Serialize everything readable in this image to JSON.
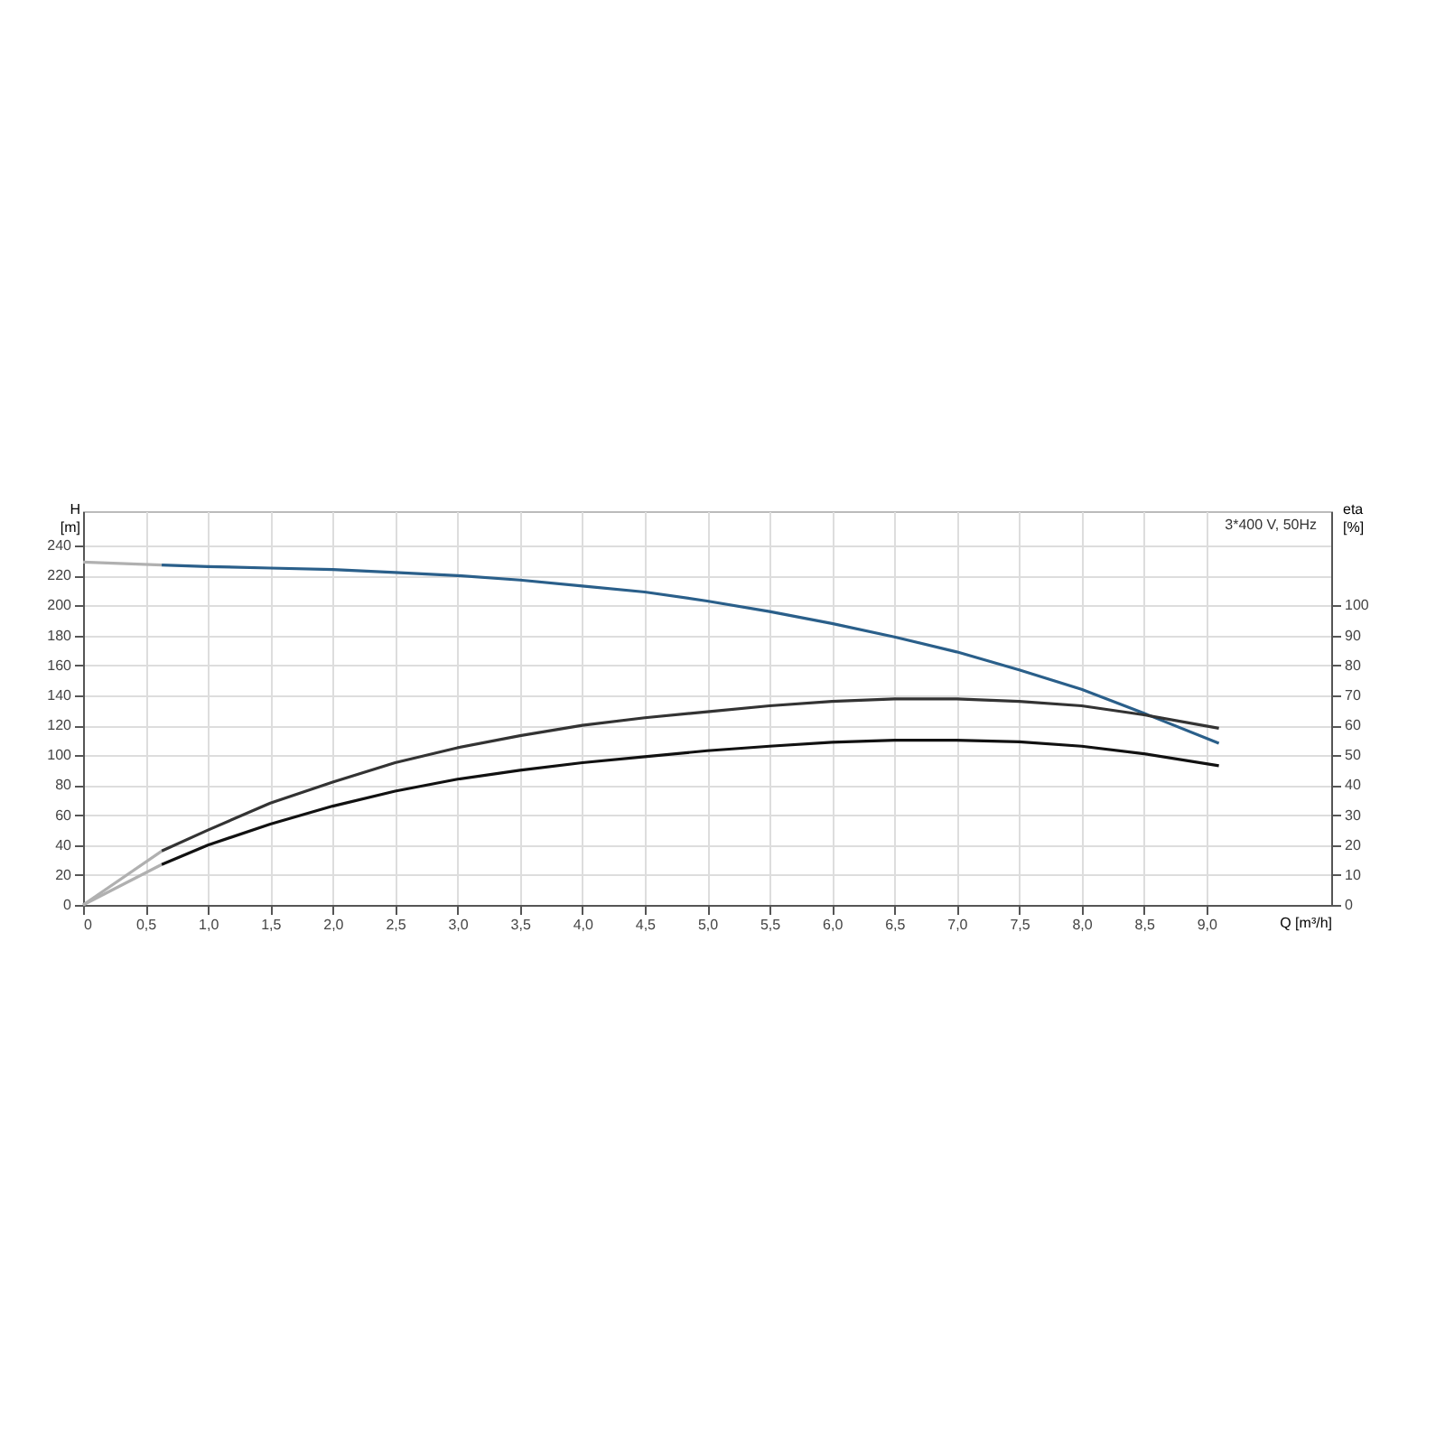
{
  "chart_data": {
    "type": "line",
    "xlabel": "Q [m³/h]",
    "ylabel": "H [m]",
    "y2label": "eta [%]",
    "annotations": [
      "3*400 V, 50Hz"
    ],
    "xlim": [
      0,
      10
    ],
    "ylim": [
      0,
      263
    ],
    "y2lim": [
      0,
      131.5
    ],
    "xticks": [
      {
        "value": 0,
        "label": "0"
      },
      {
        "value": 0.5,
        "label": "0,5"
      },
      {
        "value": 1,
        "label": "1,0"
      },
      {
        "value": 1.5,
        "label": "1,5"
      },
      {
        "value": 2,
        "label": "2,0"
      },
      {
        "value": 2.5,
        "label": "2,5"
      },
      {
        "value": 3,
        "label": "3,0"
      },
      {
        "value": 3.5,
        "label": "3,5"
      },
      {
        "value": 4,
        "label": "4,0"
      },
      {
        "value": 4.5,
        "label": "4,5"
      },
      {
        "value": 5,
        "label": "5,0"
      },
      {
        "value": 5.5,
        "label": "5,5"
      },
      {
        "value": 6,
        "label": "6,0"
      },
      {
        "value": 6.5,
        "label": "6,5"
      },
      {
        "value": 7,
        "label": "7,0"
      },
      {
        "value": 7.5,
        "label": "7,5"
      },
      {
        "value": 8,
        "label": "8,0"
      },
      {
        "value": 8.5,
        "label": "8,5"
      },
      {
        "value": 9,
        "label": "9,0"
      }
    ],
    "yticks": [
      0,
      20,
      40,
      60,
      80,
      100,
      120,
      140,
      160,
      180,
      200,
      220,
      240
    ],
    "y2ticks": [
      0,
      10,
      20,
      30,
      40,
      50,
      60,
      70,
      80,
      90,
      100
    ],
    "grid": true,
    "marker": "none",
    "line_style": "solid",
    "series": [
      {
        "color": "#b0b0b0",
        "x": [
          0,
          0.63
        ],
        "values": [
          229,
          227
        ]
      },
      {
        "color": "#2a5f8a",
        "x": [
          0.63,
          1,
          1.5,
          2,
          2.5,
          3,
          3.5,
          4,
          4.5,
          5,
          5.5,
          6,
          6.5,
          7,
          7.5,
          8,
          8.5,
          9.1
        ],
        "values": [
          227,
          226,
          225,
          224,
          222,
          220,
          217,
          213,
          209,
          203,
          196,
          188,
          179,
          169,
          157,
          144,
          128,
          108
        ]
      },
      {
        "color": "#b0b0b0",
        "axis": "y2",
        "x": [
          0,
          0.63
        ],
        "values": [
          0,
          18
        ]
      },
      {
        "color": "#333333",
        "axis": "y2",
        "x": [
          0.63,
          1,
          1.5,
          2,
          2.5,
          3,
          3.5,
          4,
          4.5,
          5,
          5.5,
          6,
          6.5,
          7,
          7.5,
          8,
          8.5,
          9.1
        ],
        "values": [
          18,
          25,
          34,
          41,
          47.5,
          52.5,
          56.5,
          60,
          62.5,
          64.5,
          66.5,
          68,
          68.8,
          68.8,
          68,
          66.5,
          63.5,
          59
        ]
      },
      {
        "color": "#b0b0b0",
        "axis": "y2",
        "x": [
          0,
          0.63
        ],
        "values": [
          0,
          13.5
        ]
      },
      {
        "color": "#111111",
        "axis": "y2",
        "x": [
          0.63,
          1,
          1.5,
          2,
          2.5,
          3,
          3.5,
          4,
          4.5,
          5,
          5.5,
          6,
          6.5,
          7,
          7.5,
          8,
          8.5,
          9.1
        ],
        "values": [
          13.5,
          20,
          27,
          33,
          38,
          42,
          45,
          47.5,
          49.5,
          51.5,
          53,
          54.3,
          55,
          55,
          54.5,
          53,
          50.5,
          46.5
        ]
      }
    ]
  }
}
